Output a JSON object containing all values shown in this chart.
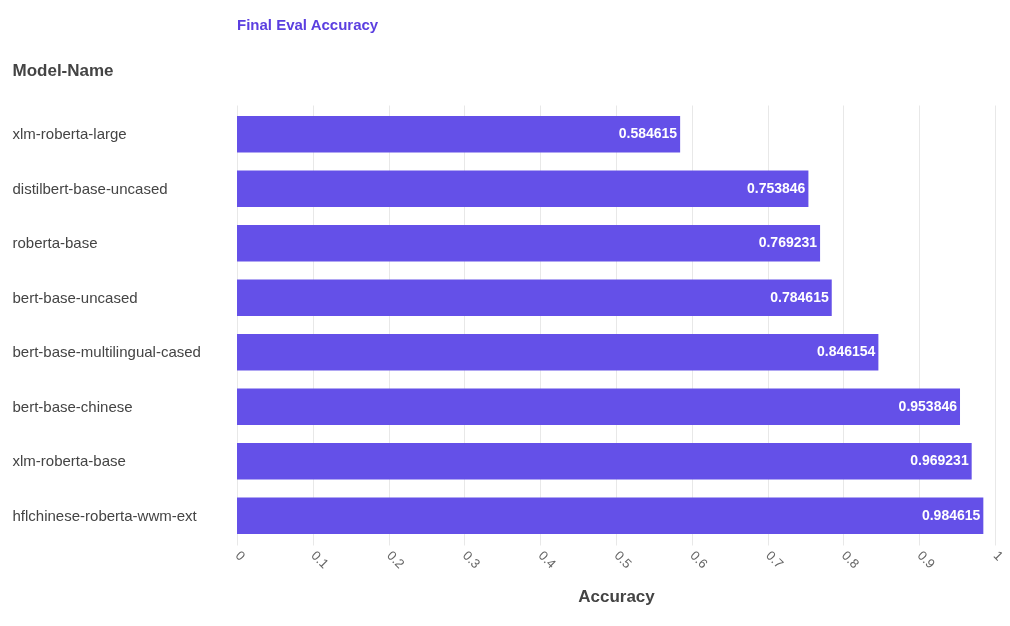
{
  "chart_data": {
    "type": "bar",
    "orientation": "horizontal",
    "title": "Final Eval Accuracy",
    "xlabel": "Accuracy",
    "ylabel": "Model-Name",
    "categories": [
      "xlm-roberta-large",
      "distilbert-base-uncased",
      "roberta-base",
      "bert-base-uncased",
      "bert-base-multilingual-cased",
      "bert-base-chinese",
      "xlm-roberta-base",
      "hflchinese-roberta-wwm-ext"
    ],
    "values": [
      0.584615,
      0.753846,
      0.769231,
      0.784615,
      0.846154,
      0.953846,
      0.969231,
      0.984615
    ],
    "color": "#6450e8",
    "xlim": [
      0,
      1
    ],
    "xticks": [
      0,
      0.1,
      0.2,
      0.3,
      0.4,
      0.5,
      0.6,
      0.7,
      0.8,
      0.9,
      1
    ],
    "grid": "x",
    "data_labels": true
  }
}
